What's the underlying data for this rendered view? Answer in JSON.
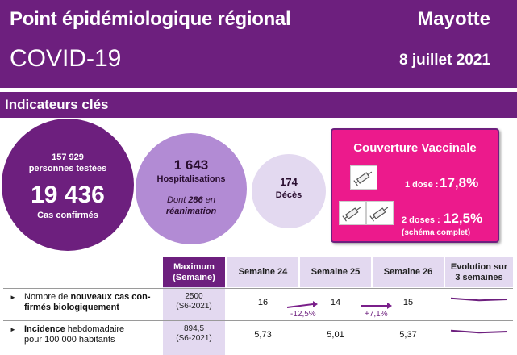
{
  "header": {
    "title": "Point épidémiologique régional",
    "subtitle": "COVID-19",
    "region": "Mayotte",
    "date": "8 juillet 2021"
  },
  "indicators": {
    "title": "Indicateurs clés",
    "tests": {
      "count": "157 929",
      "count_label": "personnes testées",
      "cases": "19 436",
      "cases_label": "Cas confirmés"
    },
    "hospital": {
      "count": "1 643",
      "label": "Hospitalisations",
      "icu_prefix": "Dont ",
      "icu_count": "286",
      "icu_suffix": " en",
      "icu_line2": "réanimation"
    },
    "deaths": {
      "count": "174",
      "label": "Décès"
    },
    "vaccination": {
      "title": "Couverture Vaccinale",
      "dose1_label": "1 dose :",
      "dose1_value": "17,8%",
      "dose2_label": "2 doses :",
      "dose2_value": "12,5%",
      "dose2_sub": "(schéma complet)"
    }
  },
  "table": {
    "headers": {
      "max_line1": "Maximum",
      "max_line2": "(Semaine)",
      "s24": "Semaine 24",
      "s25": "Semaine 25",
      "s26": "Semaine 26",
      "evo_line1": "Evolution sur",
      "evo_line2": "3 semaines"
    },
    "rows": [
      {
        "label_pre": "Nombre de ",
        "label_bold": "nouveaux cas con-",
        "label_line2": "firmés biologiquement",
        "max": "2500",
        "max_week": "(S6-2021)",
        "s24": "16",
        "s25": "14",
        "s26": "15",
        "var25": "-12,5%",
        "var26": "+7,1%",
        "trend": [
          16,
          14,
          15
        ]
      },
      {
        "label_bold": "Incidence",
        "label_post": " hebdomadaire",
        "label_line2": "pour 100 000 habitants",
        "max": "894,5",
        "max_week": "(S6-2021)",
        "s24": "5,73",
        "s25": "5,01",
        "s26": "5,37",
        "trend": [
          5.73,
          5.01,
          5.37
        ]
      }
    ]
  },
  "colors": {
    "purple": "#6d1f7e",
    "magenta": "#ec1a8c",
    "lavender": "#b28bd4",
    "light_lavender": "#e3d9f0"
  },
  "icons": {
    "vaccine": "syringe-icon",
    "bullet": "triangle-bullet-icon",
    "arrow": "arrow-right-icon"
  }
}
